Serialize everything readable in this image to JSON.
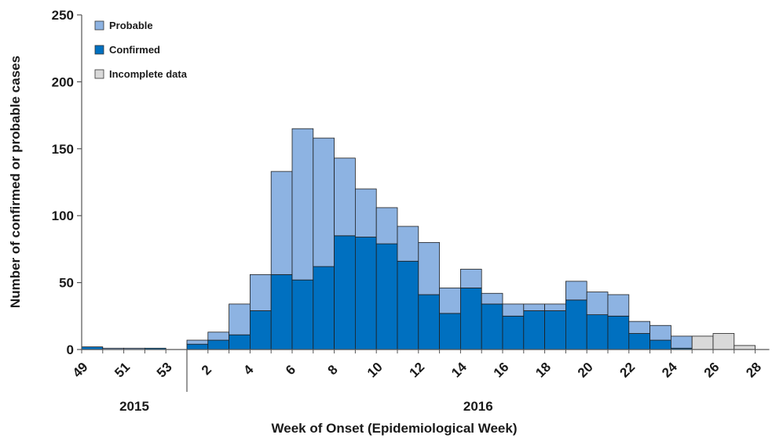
{
  "chart_data": {
    "type": "bar",
    "stacked": true,
    "ylabel": "Number of confirmed or probable cases",
    "xlabel": "Week of Onset (Epidemiological Week)",
    "ylim": [
      0,
      250
    ],
    "yticks": [
      "0",
      "50",
      "100",
      "150",
      "200",
      "250"
    ],
    "x_tick_labels": [
      {
        "week": "49",
        "label": "49"
      },
      {
        "week": "51",
        "label": "51"
      },
      {
        "week": "53",
        "label": "53"
      },
      {
        "week": "2",
        "label": "2"
      },
      {
        "week": "4",
        "label": "4"
      },
      {
        "week": "6",
        "label": "6"
      },
      {
        "week": "8",
        "label": "8"
      },
      {
        "week": "10",
        "label": "10"
      },
      {
        "week": "12",
        "label": "12"
      },
      {
        "week": "14",
        "label": "14"
      },
      {
        "week": "16",
        "label": "16"
      },
      {
        "week": "18",
        "label": "18"
      },
      {
        "week": "20",
        "label": "20"
      },
      {
        "week": "22",
        "label": "22"
      },
      {
        "week": "24",
        "label": "24"
      },
      {
        "week": "26",
        "label": "26"
      },
      {
        "week": "28",
        "label": "28"
      }
    ],
    "year_labels": [
      "2015",
      "2016"
    ],
    "legend": {
      "position": "top-left",
      "items": [
        {
          "key": "probable",
          "label": "Probable",
          "color": "#8db3e2"
        },
        {
          "key": "confirmed",
          "label": "Confirmed",
          "color": "#0070c0"
        },
        {
          "key": "incomplete",
          "label": "Incomplete data",
          "color": "#d9d9d9"
        }
      ]
    },
    "bars": [
      {
        "week": "49",
        "confirmed": 2,
        "probable": 0,
        "incomplete": 0
      },
      {
        "week": "50",
        "confirmed": 0,
        "probable": 1,
        "incomplete": 0
      },
      {
        "week": "51",
        "confirmed": 0,
        "probable": 1,
        "incomplete": 0
      },
      {
        "week": "52",
        "confirmed": 1,
        "probable": 0,
        "incomplete": 0
      },
      {
        "week": "53",
        "confirmed": 0,
        "probable": 0,
        "incomplete": 0
      },
      {
        "week": "1",
        "confirmed": 4,
        "probable": 3,
        "incomplete": 0
      },
      {
        "week": "2",
        "confirmed": 7,
        "probable": 6,
        "incomplete": 0
      },
      {
        "week": "3",
        "confirmed": 11,
        "probable": 23,
        "incomplete": 0
      },
      {
        "week": "4",
        "confirmed": 29,
        "probable": 27,
        "incomplete": 0
      },
      {
        "week": "5",
        "confirmed": 56,
        "probable": 77,
        "incomplete": 0
      },
      {
        "week": "6",
        "confirmed": 52,
        "probable": 113,
        "incomplete": 0
      },
      {
        "week": "7",
        "confirmed": 62,
        "probable": 96,
        "incomplete": 0
      },
      {
        "week": "8",
        "confirmed": 85,
        "probable": 58,
        "incomplete": 0
      },
      {
        "week": "9",
        "confirmed": 84,
        "probable": 36,
        "incomplete": 0
      },
      {
        "week": "10",
        "confirmed": 79,
        "probable": 27,
        "incomplete": 0
      },
      {
        "week": "11",
        "confirmed": 66,
        "probable": 26,
        "incomplete": 0
      },
      {
        "week": "12",
        "confirmed": 41,
        "probable": 39,
        "incomplete": 0
      },
      {
        "week": "13",
        "confirmed": 27,
        "probable": 19,
        "incomplete": 0
      },
      {
        "week": "14",
        "confirmed": 46,
        "probable": 14,
        "incomplete": 0
      },
      {
        "week": "15",
        "confirmed": 34,
        "probable": 8,
        "incomplete": 0
      },
      {
        "week": "16",
        "confirmed": 25,
        "probable": 9,
        "incomplete": 0
      },
      {
        "week": "17",
        "confirmed": 29,
        "probable": 5,
        "incomplete": 0
      },
      {
        "week": "18",
        "confirmed": 29,
        "probable": 5,
        "incomplete": 0
      },
      {
        "week": "19",
        "confirmed": 37,
        "probable": 14,
        "incomplete": 0
      },
      {
        "week": "20",
        "confirmed": 26,
        "probable": 17,
        "incomplete": 0
      },
      {
        "week": "21",
        "confirmed": 25,
        "probable": 16,
        "incomplete": 0
      },
      {
        "week": "22",
        "confirmed": 12,
        "probable": 9,
        "incomplete": 0
      },
      {
        "week": "23",
        "confirmed": 7,
        "probable": 11,
        "incomplete": 0
      },
      {
        "week": "24",
        "confirmed": 1,
        "probable": 9,
        "incomplete": 0
      },
      {
        "week": "25",
        "confirmed": 0,
        "probable": 0,
        "incomplete": 10
      },
      {
        "week": "26",
        "confirmed": 0,
        "probable": 0,
        "incomplete": 12
      },
      {
        "week": "27",
        "confirmed": 0,
        "probable": 0,
        "incomplete": 3
      }
    ]
  }
}
